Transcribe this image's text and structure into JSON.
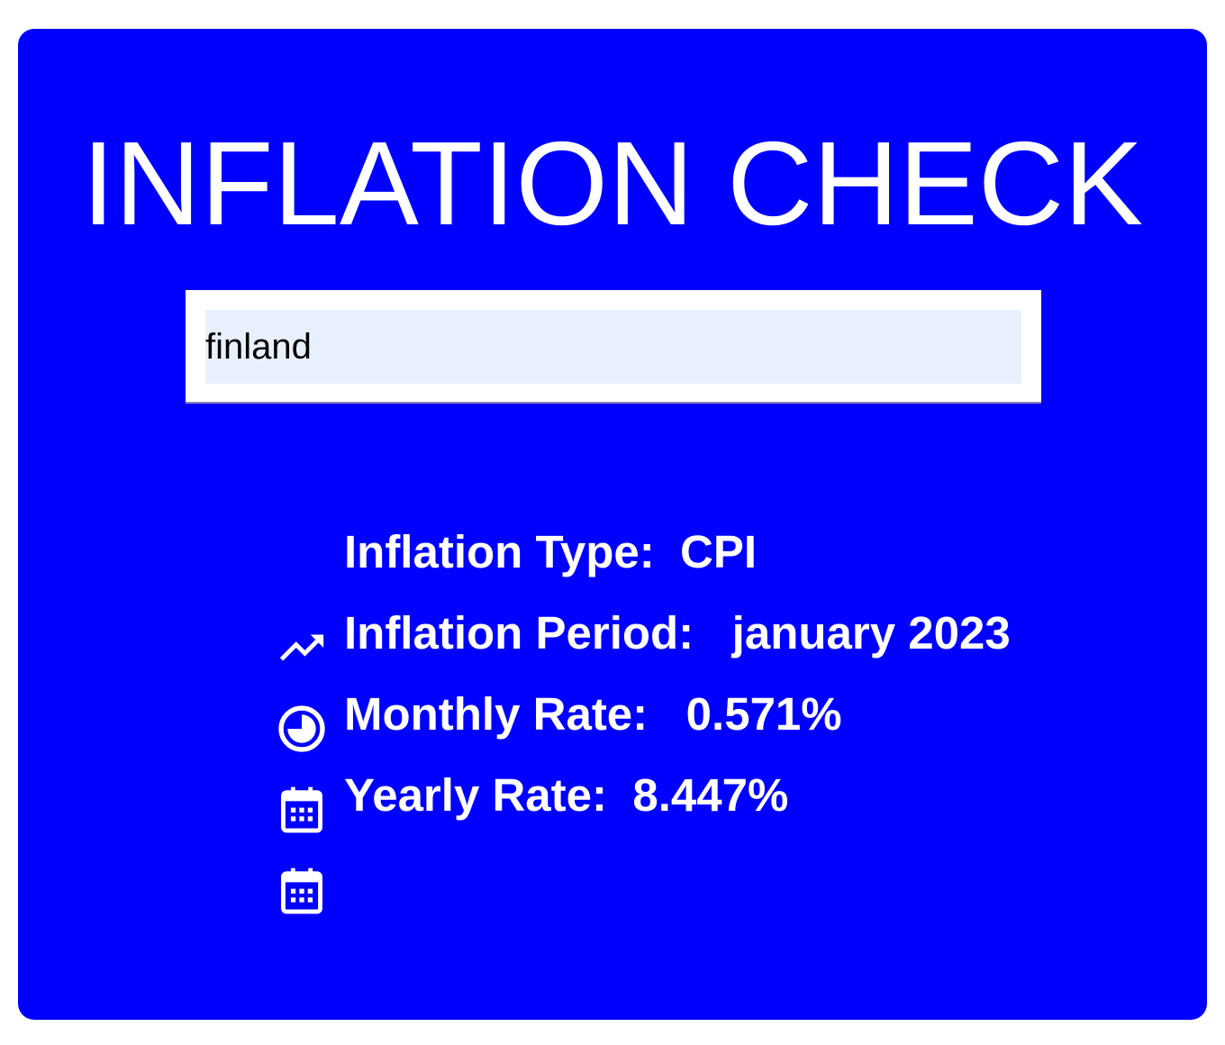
{
  "app": {
    "title": "INFLATION CHECK"
  },
  "search": {
    "value": "finland"
  },
  "info": {
    "rows": [
      {
        "icon": "trending-up-icon",
        "label": "Inflation Type:",
        "value": "CPI",
        "gap": "  "
      },
      {
        "icon": "pie-chart-icon",
        "label": "Inflation Period:",
        "value": "january 2023",
        "gap": "   "
      },
      {
        "icon": "calendar-icon",
        "label": "Monthly Rate:",
        "value": "0.571%",
        "gap": "   "
      },
      {
        "icon": "calendar-icon",
        "label": "Yearly Rate:",
        "value": "8.447%",
        "gap": "  "
      }
    ]
  },
  "colors": {
    "background": "#0000ff",
    "text": "#ffffff",
    "input_background": "#e8f0fe"
  }
}
